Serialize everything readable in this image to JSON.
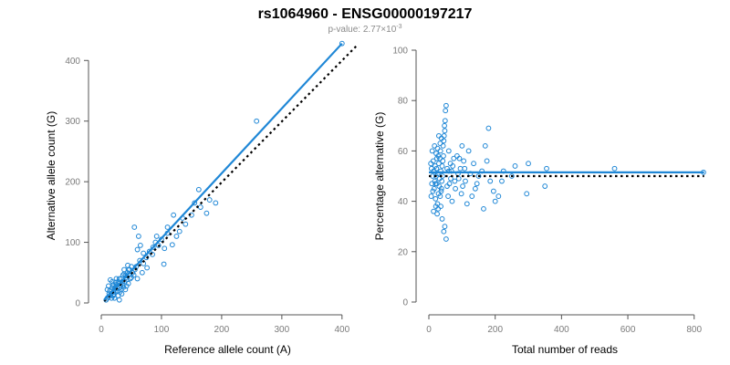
{
  "title": "rs1064960 - ENSG00000197217",
  "subtitle_prefix": "p-value: 2.77×10",
  "subtitle_exponent": "-3",
  "colors": {
    "points": "#1f87d6",
    "fit_line": "#1f87d6",
    "reference_line": "#000000",
    "axis": "#555555"
  },
  "chart_data": [
    {
      "type": "scatter",
      "xlabel": "Reference allele count (A)",
      "ylabel": "Alternative allele count (G)",
      "xlim": [
        0,
        420
      ],
      "ylim": [
        0,
        420
      ],
      "xticks": [
        0,
        100,
        200,
        300,
        400
      ],
      "yticks": [
        0,
        100,
        200,
        300,
        400
      ],
      "grid": false,
      "fit_line": {
        "x": [
          5,
          400
        ],
        "y": [
          5,
          428
        ]
      },
      "reference_line": {
        "x": [
          5,
          425
        ],
        "y": [
          3,
          425
        ]
      },
      "points": [
        [
          400,
          428
        ],
        [
          258,
          300
        ],
        [
          190,
          165
        ],
        [
          162,
          187
        ],
        [
          180,
          170
        ],
        [
          155,
          165
        ],
        [
          150,
          145
        ],
        [
          135,
          140
        ],
        [
          130,
          118
        ],
        [
          125,
          110
        ],
        [
          120,
          145
        ],
        [
          110,
          125
        ],
        [
          110,
          115
        ],
        [
          105,
          90
        ],
        [
          100,
          105
        ],
        [
          95,
          95
        ],
        [
          90,
          100
        ],
        [
          85,
          80
        ],
        [
          80,
          85
        ],
        [
          75,
          75
        ],
        [
          70,
          65
        ],
        [
          65,
          95
        ],
        [
          60,
          88
        ],
        [
          62,
          110
        ],
        [
          55,
          125
        ],
        [
          50,
          60
        ],
        [
          45,
          55
        ],
        [
          48,
          40
        ],
        [
          40,
          45
        ],
        [
          38,
          55
        ],
        [
          35,
          35
        ],
        [
          33,
          40
        ],
        [
          30,
          25
        ],
        [
          28,
          35
        ],
        [
          25,
          30
        ],
        [
          22,
          22
        ],
        [
          20,
          18
        ],
        [
          18,
          25
        ],
        [
          15,
          12
        ],
        [
          12,
          10
        ],
        [
          10,
          8
        ],
        [
          8,
          5
        ],
        [
          14,
          20
        ],
        [
          16,
          15
        ],
        [
          20,
          30
        ],
        [
          24,
          18
        ],
        [
          26,
          26
        ],
        [
          30,
          40
        ],
        [
          32,
          28
        ],
        [
          36,
          30
        ],
        [
          42,
          38
        ],
        [
          46,
          48
        ],
        [
          52,
          50
        ],
        [
          58,
          60
        ],
        [
          44,
          62
        ],
        [
          38,
          48
        ],
        [
          28,
          12
        ],
        [
          18,
          35
        ],
        [
          12,
          28
        ],
        [
          22,
          8
        ],
        [
          34,
          15
        ],
        [
          40,
          22
        ],
        [
          30,
          5
        ],
        [
          25,
          40
        ],
        [
          15,
          38
        ],
        [
          10,
          22
        ],
        [
          20,
          12
        ],
        [
          27,
          20
        ],
        [
          33,
          22
        ],
        [
          36,
          46
        ],
        [
          42,
          28
        ],
        [
          50,
          42
        ],
        [
          56,
          55
        ],
        [
          64,
          70
        ],
        [
          70,
          82
        ],
        [
          86,
          92
        ],
        [
          76,
          58
        ],
        [
          92,
          110
        ],
        [
          104,
          64
        ],
        [
          118,
          96
        ],
        [
          140,
          130
        ],
        [
          165,
          158
        ],
        [
          175,
          148
        ],
        [
          68,
          50
        ],
        [
          60,
          40
        ],
        [
          45,
          32
        ],
        [
          54,
          46
        ],
        [
          24,
          34
        ],
        [
          17,
          8
        ],
        [
          13,
          16
        ],
        [
          19,
          28
        ],
        [
          21,
          14
        ],
        [
          23,
          25
        ],
        [
          29,
          32
        ],
        [
          31,
          18
        ],
        [
          37,
          26
        ],
        [
          39,
          35
        ],
        [
          41,
          42
        ],
        [
          43,
          50
        ],
        [
          47,
          55
        ]
      ]
    },
    {
      "type": "scatter",
      "xlabel": "Total number of reads",
      "ylabel": "Percentage alternative (G)",
      "xlim": [
        0,
        820
      ],
      "ylim": [
        0,
        100
      ],
      "xticks": [
        0,
        200,
        400,
        600,
        800
      ],
      "yticks": [
        0,
        20,
        40,
        60,
        80,
        100
      ],
      "grid": false,
      "fit_line": {
        "x": [
          0,
          830
        ],
        "y": [
          51.5,
          51.5
        ]
      },
      "reference_line": {
        "x": [
          0,
          830
        ],
        "y": [
          50,
          50
        ]
      },
      "points": [
        [
          828,
          51.5
        ],
        [
          560,
          53
        ],
        [
          355,
          53
        ],
        [
          350,
          46
        ],
        [
          300,
          55
        ],
        [
          295,
          43
        ],
        [
          260,
          54
        ],
        [
          250,
          50
        ],
        [
          225,
          52
        ],
        [
          220,
          48
        ],
        [
          210,
          42
        ],
        [
          200,
          40
        ],
        [
          195,
          44
        ],
        [
          185,
          48
        ],
        [
          180,
          69
        ],
        [
          175,
          56
        ],
        [
          170,
          62
        ],
        [
          165,
          37
        ],
        [
          160,
          52
        ],
        [
          150,
          50
        ],
        [
          145,
          47
        ],
        [
          140,
          45
        ],
        [
          135,
          55
        ],
        [
          130,
          42
        ],
        [
          125,
          51
        ],
        [
          120,
          60
        ],
        [
          115,
          39
        ],
        [
          110,
          48
        ],
        [
          105,
          56
        ],
        [
          100,
          62
        ],
        [
          98,
          43
        ],
        [
          95,
          53
        ],
        [
          90,
          49
        ],
        [
          85,
          58
        ],
        [
          80,
          45
        ],
        [
          75,
          57
        ],
        [
          70,
          40
        ],
        [
          68,
          52
        ],
        [
          65,
          55
        ],
        [
          62,
          47
        ],
        [
          60,
          60
        ],
        [
          58,
          42
        ],
        [
          55,
          53
        ],
        [
          52,
          78
        ],
        [
          50,
          76
        ],
        [
          49,
          72
        ],
        [
          48,
          68
        ],
        [
          47,
          70
        ],
        [
          46,
          66
        ],
        [
          45,
          64
        ],
        [
          44,
          58
        ],
        [
          43,
          62
        ],
        [
          42,
          56
        ],
        [
          41,
          50
        ],
        [
          40,
          54
        ],
        [
          39,
          48
        ],
        [
          38,
          45
        ],
        [
          37,
          44
        ],
        [
          36,
          52
        ],
        [
          35,
          60
        ],
        [
          34,
          63
        ],
        [
          33,
          57
        ],
        [
          32,
          49
        ],
        [
          31,
          46
        ],
        [
          30,
          55
        ],
        [
          29,
          43
        ],
        [
          28,
          58
        ],
        [
          27,
          51
        ],
        [
          26,
          39
        ],
        [
          25,
          35
        ],
        [
          24,
          47
        ],
        [
          23,
          53
        ],
        [
          22,
          59
        ],
        [
          21,
          38
        ],
        [
          20,
          41
        ],
        [
          19,
          54
        ],
        [
          18,
          48
        ],
        [
          17,
          62
        ],
        [
          16,
          45
        ],
        [
          15,
          52
        ],
        [
          14,
          36
        ],
        [
          13,
          56
        ],
        [
          12,
          44
        ],
        [
          11,
          50
        ],
        [
          10,
          60
        ],
        [
          9,
          47
        ],
        [
          8,
          53
        ],
        [
          7,
          42
        ],
        [
          6,
          55
        ],
        [
          52,
          25
        ],
        [
          48,
          30
        ],
        [
          45,
          28
        ],
        [
          40,
          33
        ],
        [
          38,
          65
        ],
        [
          36,
          38
        ],
        [
          34,
          42
        ],
        [
          30,
          66
        ],
        [
          28,
          37
        ],
        [
          26,
          61
        ],
        [
          24,
          57
        ],
        [
          22,
          50
        ],
        [
          20,
          47
        ],
        [
          55,
          46
        ],
        [
          60,
          52
        ],
        [
          66,
          49
        ],
        [
          72,
          54
        ],
        [
          78,
          48
        ],
        [
          88,
          51
        ],
        [
          92,
          57
        ],
        [
          102,
          46
        ],
        [
          108,
          53
        ]
      ]
    }
  ]
}
